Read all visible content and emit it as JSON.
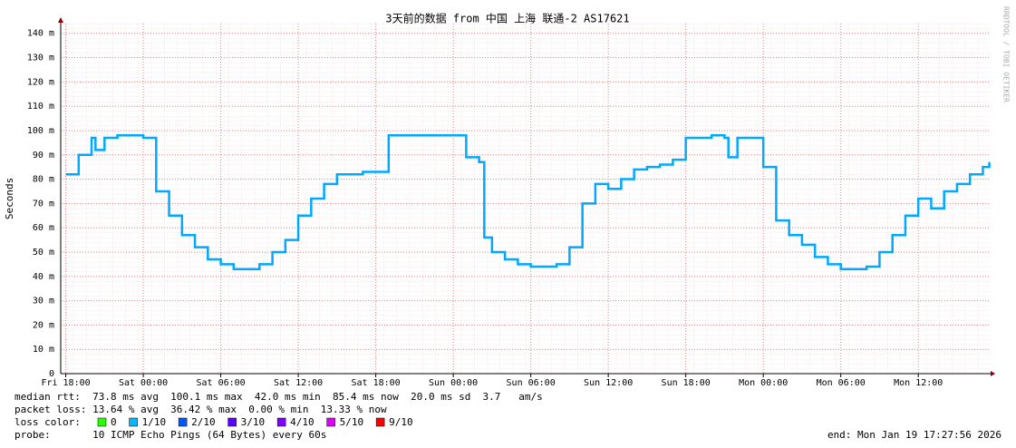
{
  "chart_data": {
    "type": "line",
    "title": "3天前的数据 from 中国 上海 联通-2 AS17621",
    "y_label": "Seconds",
    "watermark": "RRDTOOL / TOBI OETIKER",
    "x": [
      0,
      1,
      2,
      2.3,
      3,
      4,
      5,
      6,
      7,
      8,
      9,
      10,
      11,
      12,
      13,
      14,
      15,
      16,
      17,
      18,
      19,
      20,
      21,
      22,
      23,
      24,
      25,
      26,
      27,
      28,
      29,
      30,
      31,
      32,
      32.4,
      33,
      34,
      35,
      36,
      37,
      38,
      39,
      40,
      41,
      42,
      43,
      44,
      45,
      46,
      47,
      48,
      49,
      50,
      51,
      51.3,
      52,
      53,
      54,
      55,
      56,
      57,
      58,
      59,
      60,
      61,
      62,
      63,
      64,
      65,
      66,
      67,
      68,
      69,
      70,
      71,
      71.5
    ],
    "series": [
      {
        "name": "median rtt",
        "color": "#00a8ff",
        "values": [
          0.082,
          0.09,
          0.097,
          0.092,
          0.097,
          0.098,
          0.098,
          0.097,
          0.075,
          0.065,
          0.057,
          0.052,
          0.047,
          0.045,
          0.043,
          0.043,
          0.045,
          0.05,
          0.055,
          0.065,
          0.072,
          0.078,
          0.082,
          0.082,
          0.083,
          0.083,
          0.098,
          0.098,
          0.098,
          0.098,
          0.098,
          0.098,
          0.089,
          0.087,
          0.056,
          0.05,
          0.047,
          0.045,
          0.044,
          0.044,
          0.045,
          0.052,
          0.07,
          0.078,
          0.076,
          0.08,
          0.084,
          0.085,
          0.086,
          0.088,
          0.097,
          0.097,
          0.098,
          0.097,
          0.089,
          0.097,
          0.097,
          0.085,
          0.063,
          0.057,
          0.053,
          0.048,
          0.045,
          0.043,
          0.043,
          0.044,
          0.05,
          0.057,
          0.065,
          0.072,
          0.068,
          0.075,
          0.078,
          0.082,
          0.085,
          0.087
        ]
      }
    ],
    "xlim": [
      -0.39,
      71.6
    ],
    "xticks": [
      {
        "value": 0,
        "label": "Fri 18:00"
      },
      {
        "value": 6,
        "label": "Sat 00:00"
      },
      {
        "value": 12,
        "label": "Sat 06:00"
      },
      {
        "value": 18,
        "label": "Sat 12:00"
      },
      {
        "value": 24,
        "label": "Sat 18:00"
      },
      {
        "value": 30,
        "label": "Sun 00:00"
      },
      {
        "value": 36,
        "label": "Sun 06:00"
      },
      {
        "value": 42,
        "label": "Sun 12:00"
      },
      {
        "value": 48,
        "label": "Sun 18:00"
      },
      {
        "value": 54,
        "label": "Mon 00:00"
      },
      {
        "value": 60,
        "label": "Mon 06:00"
      },
      {
        "value": 66,
        "label": "Mon 12:00"
      }
    ],
    "ylim": [
      0,
      0.144
    ],
    "yticks": [
      0,
      {
        "value": 0.01,
        "label": "10 m"
      },
      {
        "value": 0.02,
        "label": "20 m"
      },
      {
        "value": 0.03,
        "label": "30 m"
      },
      {
        "value": 0.04,
        "label": "40 m"
      },
      {
        "value": 0.05,
        "label": "50 m"
      },
      {
        "value": 0.06,
        "label": "60 m"
      },
      {
        "value": 0.07,
        "label": "70 m"
      },
      {
        "value": 0.08,
        "label": "80 m"
      },
      {
        "value": 0.09,
        "label": "90 m"
      },
      {
        "value": 0.1,
        "label": "100 m"
      },
      {
        "value": 0.11,
        "label": "110 m"
      },
      {
        "value": 0.12,
        "label": "120 m"
      },
      {
        "value": 0.13,
        "label": "130 m"
      },
      {
        "value": 0.14,
        "label": "140 m"
      }
    ],
    "grid": true,
    "stats": {
      "median_line": "median rtt:  73.8 ms avg  100.1 ms max  42.0 ms min  85.4 ms now  20.0 ms sd  3.7   am/s",
      "loss_line": "packet loss: 13.64 % avg  36.42 % max  0.00 % min  13.33 % now",
      "loss_color_label": "loss color:",
      "loss_colors": [
        {
          "name": "0",
          "color": "#26ff00"
        },
        {
          "name": "1/10",
          "color": "#00b8ff"
        },
        {
          "name": "2/10",
          "color": "#0059ff"
        },
        {
          "name": "3/10",
          "color": "#5e00ff"
        },
        {
          "name": "4/10",
          "color": "#7e00ff"
        },
        {
          "name": "5/10",
          "color": "#dd00ff"
        },
        {
          "name": "9/10",
          "color": "#ff0000"
        }
      ],
      "probe_line": "probe:       10 ICMP Echo Pings (64 Bytes) every 60s",
      "end_line": "end: Mon Jan 19 17:27:56 2026"
    }
  }
}
